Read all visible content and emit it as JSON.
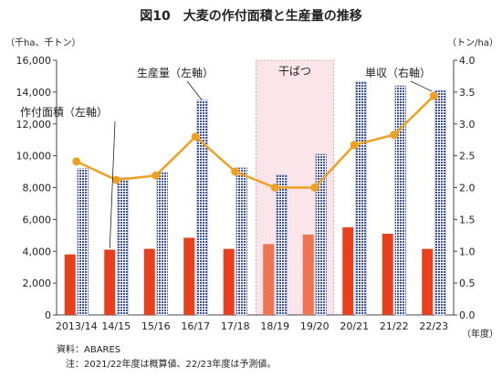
{
  "chart_data": {
    "type": "bar",
    "title": "図10　大麦の作付面積と生産量の推移",
    "left_unit": "（千ha、千トン）",
    "right_unit": "（トン/ha）",
    "x_unit": "（年度）",
    "categories": [
      "2013/14",
      "14/15",
      "15/16",
      "16/17",
      "17/18",
      "18/19",
      "19/20",
      "20/21",
      "21/22",
      "22/23"
    ],
    "ylim_left": [
      0,
      16000
    ],
    "yticks_left": [
      "0",
      "2,000",
      "4,000",
      "6,000",
      "8,000",
      "10,000",
      "12,000",
      "14,000",
      "16,000"
    ],
    "ylim_right": [
      0,
      4.0
    ],
    "yticks_right": [
      "0.0",
      "0.5",
      "1.0",
      "1.5",
      "2.0",
      "2.5",
      "3.0",
      "3.5",
      "4.0"
    ],
    "series": [
      {
        "name": "作付面積（左軸）",
        "kind": "bar",
        "axis": "left",
        "color": "#e8401c",
        "highlight_color": "#ee7452",
        "values": [
          3800,
          4100,
          4150,
          4850,
          4150,
          4450,
          5050,
          5500,
          5100,
          4150
        ]
      },
      {
        "name": "生産量（左軸）",
        "kind": "bar",
        "axis": "left",
        "color": "#3c50a0",
        "values": [
          9200,
          8650,
          8950,
          13500,
          9250,
          8800,
          10100,
          14650,
          14400,
          14100
        ]
      },
      {
        "name": "単収（右軸）",
        "kind": "line",
        "axis": "right",
        "color": "#f0a020",
        "values": [
          2.41,
          2.12,
          2.19,
          2.8,
          2.25,
          2.0,
          2.0,
          2.67,
          2.83,
          3.44
        ]
      }
    ],
    "shaded_region": {
      "label": "干ばつ",
      "from": "18/19",
      "to": "19/20",
      "color": "#fbe4ea"
    }
  },
  "notes": {
    "source": "資料：ABARES",
    "remark": "注：2021/22年度は概算値、22/23年度は予測値。"
  }
}
